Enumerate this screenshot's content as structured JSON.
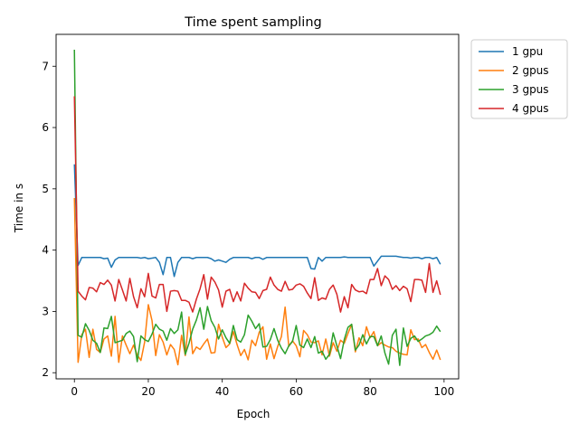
{
  "chart_data": {
    "type": "line",
    "title": "Time spent sampling",
    "xlabel": "Epoch",
    "ylabel": "Time in s",
    "xlim": [
      -4.95,
      103.95
    ],
    "ylim": [
      1.9,
      7.52
    ],
    "xticks": [
      0,
      20,
      40,
      60,
      80,
      100
    ],
    "yticks": [
      2,
      3,
      4,
      5,
      6,
      7
    ],
    "grid": false,
    "legend_placement": "upper right outside",
    "x": [
      0,
      1,
      2,
      3,
      4,
      5,
      6,
      7,
      8,
      9,
      10,
      11,
      12,
      13,
      14,
      15,
      16,
      17,
      18,
      19,
      20,
      21,
      22,
      23,
      24,
      25,
      26,
      27,
      28,
      29,
      30,
      31,
      32,
      33,
      34,
      35,
      36,
      37,
      38,
      39,
      40,
      41,
      42,
      43,
      44,
      45,
      46,
      47,
      48,
      49,
      50,
      51,
      52,
      53,
      54,
      55,
      56,
      57,
      58,
      59,
      60,
      61,
      62,
      63,
      64,
      65,
      66,
      67,
      68,
      69,
      70,
      71,
      72,
      73,
      74,
      75,
      76,
      77,
      78,
      79,
      80,
      81,
      82,
      83,
      84,
      85,
      86,
      87,
      88,
      89,
      90,
      91,
      92,
      93,
      94,
      95,
      96,
      97,
      98,
      99
    ],
    "series": [
      {
        "name": "1 gpu",
        "color": "#1f77b4",
        "values": [
          5.4,
          3.75,
          3.88,
          3.88,
          3.88,
          3.88,
          3.88,
          3.88,
          3.86,
          3.87,
          3.72,
          3.84,
          3.88,
          3.88,
          3.88,
          3.88,
          3.88,
          3.88,
          3.87,
          3.88,
          3.86,
          3.87,
          3.88,
          3.8,
          3.6,
          3.88,
          3.88,
          3.57,
          3.8,
          3.88,
          3.88,
          3.88,
          3.86,
          3.88,
          3.88,
          3.88,
          3.88,
          3.86,
          3.82,
          3.84,
          3.82,
          3.8,
          3.85,
          3.88,
          3.88,
          3.88,
          3.88,
          3.88,
          3.86,
          3.88,
          3.88,
          3.85,
          3.88,
          3.88,
          3.88,
          3.88,
          3.88,
          3.88,
          3.88,
          3.88,
          3.88,
          3.88,
          3.88,
          3.88,
          3.7,
          3.69,
          3.88,
          3.82,
          3.88,
          3.88,
          3.88,
          3.88,
          3.88,
          3.89,
          3.88,
          3.88,
          3.88,
          3.88,
          3.88,
          3.88,
          3.88,
          3.74,
          3.82,
          3.9,
          3.9,
          3.9,
          3.9,
          3.9,
          3.89,
          3.88,
          3.88,
          3.87,
          3.88,
          3.88,
          3.86,
          3.88,
          3.88,
          3.86,
          3.88,
          3.77
        ]
      },
      {
        "name": "2 gpus",
        "color": "#ff7f0e",
        "values": [
          4.85,
          2.17,
          2.62,
          2.71,
          2.25,
          2.71,
          2.38,
          2.33,
          2.55,
          2.6,
          2.27,
          2.92,
          2.17,
          2.6,
          2.45,
          2.31,
          2.45,
          2.29,
          2.2,
          2.5,
          3.11,
          2.85,
          2.28,
          2.62,
          2.5,
          2.29,
          2.46,
          2.38,
          2.13,
          2.61,
          2.28,
          2.91,
          2.31,
          2.42,
          2.38,
          2.47,
          2.55,
          2.32,
          2.33,
          2.79,
          2.58,
          2.41,
          2.47,
          2.67,
          2.46,
          2.28,
          2.38,
          2.21,
          2.53,
          2.44,
          2.66,
          2.75,
          2.22,
          2.47,
          2.23,
          2.43,
          2.59,
          3.07,
          2.43,
          2.52,
          2.44,
          2.26,
          2.69,
          2.62,
          2.5,
          2.49,
          2.52,
          2.29,
          2.55,
          2.27,
          2.49,
          2.35,
          2.53,
          2.48,
          2.64,
          2.79,
          2.34,
          2.57,
          2.44,
          2.75,
          2.57,
          2.67,
          2.44,
          2.49,
          2.45,
          2.42,
          2.41,
          2.35,
          2.32,
          2.3,
          2.29,
          2.7,
          2.54,
          2.55,
          2.41,
          2.46,
          2.33,
          2.22,
          2.37,
          2.21
        ]
      },
      {
        "name": "3 gpus",
        "color": "#2ca02c",
        "values": [
          7.27,
          2.61,
          2.58,
          2.8,
          2.69,
          2.53,
          2.48,
          2.33,
          2.73,
          2.72,
          2.92,
          2.49,
          2.51,
          2.53,
          2.64,
          2.68,
          2.59,
          2.18,
          2.6,
          2.54,
          2.51,
          2.63,
          2.79,
          2.71,
          2.68,
          2.53,
          2.72,
          2.64,
          2.7,
          2.99,
          2.3,
          2.48,
          2.71,
          2.86,
          3.06,
          2.71,
          3.08,
          2.85,
          2.74,
          2.55,
          2.7,
          2.57,
          2.48,
          2.77,
          2.54,
          2.5,
          2.62,
          2.94,
          2.84,
          2.72,
          2.8,
          2.42,
          2.43,
          2.54,
          2.72,
          2.53,
          2.4,
          2.31,
          2.44,
          2.51,
          2.77,
          2.45,
          2.41,
          2.55,
          2.41,
          2.59,
          2.32,
          2.35,
          2.22,
          2.3,
          2.65,
          2.44,
          2.23,
          2.54,
          2.74,
          2.79,
          2.37,
          2.45,
          2.62,
          2.47,
          2.59,
          2.59,
          2.44,
          2.6,
          2.32,
          2.14,
          2.61,
          2.71,
          2.12,
          2.73,
          2.43,
          2.56,
          2.6,
          2.51,
          2.55,
          2.6,
          2.62,
          2.66,
          2.76,
          2.67
        ]
      },
      {
        "name": "4 gpus",
        "color": "#d62728",
        "values": [
          6.51,
          3.33,
          3.25,
          3.19,
          3.39,
          3.38,
          3.32,
          3.47,
          3.44,
          3.51,
          3.43,
          3.17,
          3.52,
          3.35,
          3.17,
          3.54,
          3.24,
          3.06,
          3.37,
          3.24,
          3.62,
          3.25,
          3.22,
          3.44,
          3.44,
          3.0,
          3.33,
          3.34,
          3.33,
          3.18,
          3.18,
          3.15,
          2.99,
          3.2,
          3.37,
          3.6,
          3.2,
          3.56,
          3.48,
          3.35,
          3.07,
          3.33,
          3.36,
          3.16,
          3.32,
          3.17,
          3.46,
          3.38,
          3.32,
          3.31,
          3.21,
          3.34,
          3.36,
          3.56,
          3.43,
          3.36,
          3.33,
          3.49,
          3.35,
          3.36,
          3.43,
          3.45,
          3.41,
          3.3,
          3.21,
          3.55,
          3.18,
          3.22,
          3.2,
          3.36,
          3.43,
          3.28,
          2.99,
          3.24,
          3.06,
          3.44,
          3.35,
          3.32,
          3.33,
          3.29,
          3.52,
          3.52,
          3.7,
          3.42,
          3.58,
          3.52,
          3.36,
          3.42,
          3.34,
          3.41,
          3.37,
          3.16,
          3.52,
          3.52,
          3.51,
          3.31,
          3.78,
          3.31,
          3.5,
          3.27
        ]
      }
    ]
  }
}
